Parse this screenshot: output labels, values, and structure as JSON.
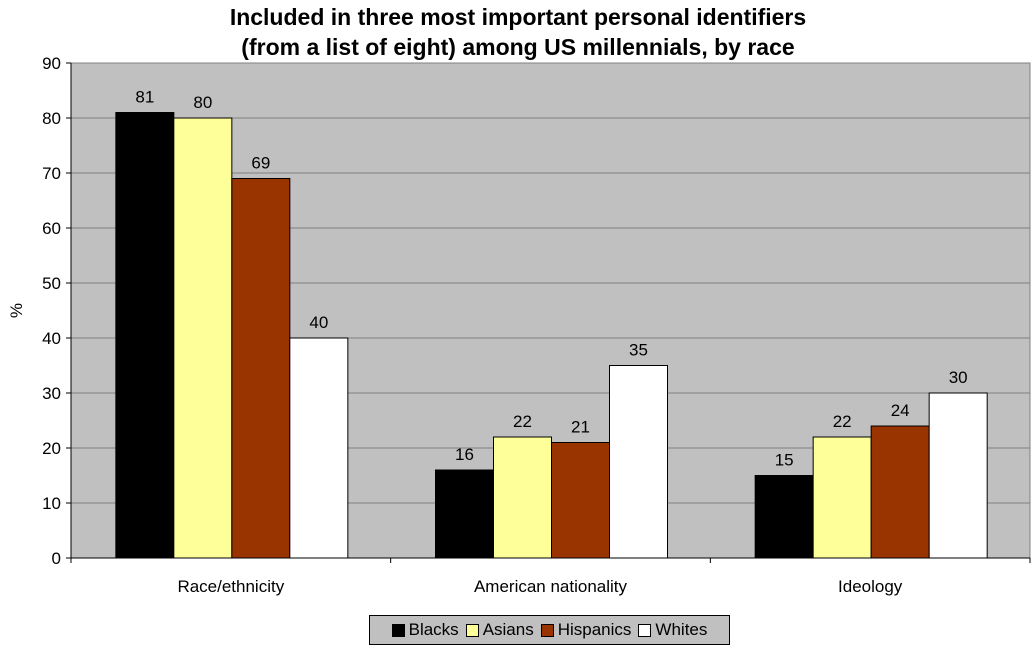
{
  "chart_data": {
    "type": "bar",
    "title_line1": "Included in three most important personal identifiers",
    "title_line2": "(from a list of eight) among US millennials, by race",
    "xlabel": "",
    "ylabel": "%",
    "ylim": [
      0,
      90
    ],
    "yticks": [
      "0",
      "10",
      "20",
      "30",
      "40",
      "50",
      "60",
      "70",
      "80",
      "90"
    ],
    "grid": true,
    "legend_position": "bottom",
    "plot_background": "#c0c0c0",
    "categories": [
      "Race/ethnicity",
      "American nationality",
      "Ideology"
    ],
    "series": [
      {
        "name": "Blacks",
        "color": "#000000",
        "values": [
          81,
          16,
          15
        ]
      },
      {
        "name": "Asians",
        "color": "#ffff99",
        "values": [
          80,
          22,
          22
        ]
      },
      {
        "name": "Hispanics",
        "color": "#993300",
        "values": [
          69,
          21,
          24
        ]
      },
      {
        "name": "Whites",
        "color": "#ffffff",
        "values": [
          40,
          35,
          30
        ]
      }
    ]
  }
}
